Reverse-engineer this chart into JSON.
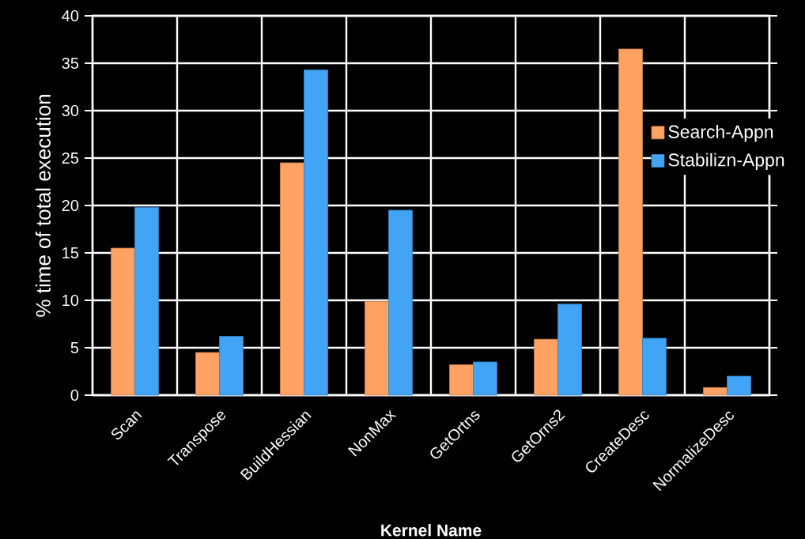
{
  "chart_data": {
    "type": "bar",
    "xlabel": "Kernel Name",
    "ylabel": "% time of total execution",
    "categories": [
      "Scan",
      "Transpose",
      "BuildHessian",
      "NonMax",
      "GetOrtns",
      "GetOrns2",
      "CreateDesc",
      "NormalizeDesc"
    ],
    "series": [
      {
        "name": "Search-Appn",
        "color": "#ffa264",
        "values": [
          15.5,
          4.5,
          24.5,
          9.9,
          3.2,
          5.9,
          36.5,
          0.8
        ]
      },
      {
        "name": "Stabilizn-Appn",
        "color": "#42a4f5",
        "values": [
          19.8,
          6.2,
          34.3,
          19.5,
          3.5,
          9.6,
          6.0,
          2.0
        ]
      }
    ],
    "ylim": [
      0,
      40
    ],
    "yticks": [
      0,
      5,
      10,
      15,
      20,
      25,
      30,
      35,
      40
    ],
    "grid": true,
    "legend": "right"
  }
}
